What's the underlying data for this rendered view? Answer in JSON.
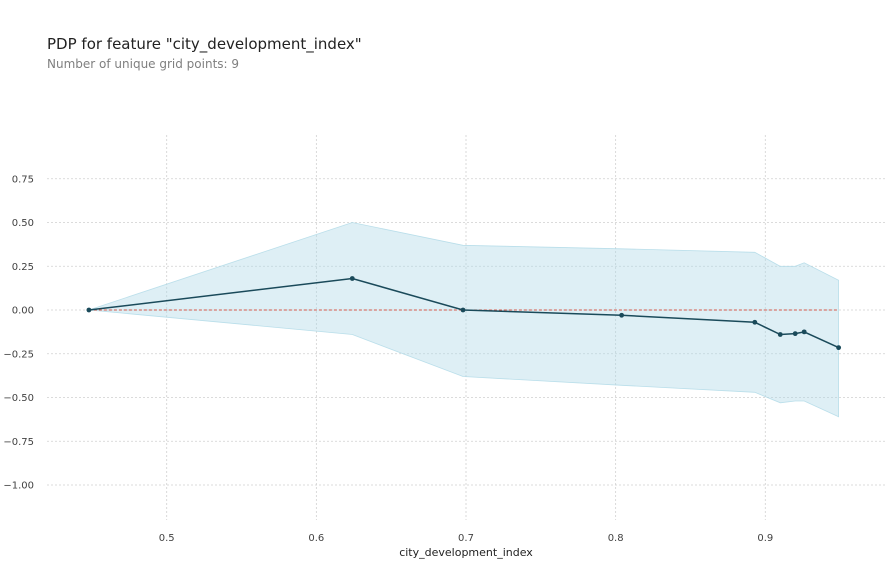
{
  "header": {
    "title": "PDP for feature \"city_development_index\"",
    "subtitle": "Number of unique grid points: 9"
  },
  "colors": {
    "line": "#1a4a5a",
    "band": "#add8e6",
    "baseline": "#d65a4a",
    "grid": "#d0d0d0"
  },
  "chart_data": {
    "type": "line",
    "title": "PDP for feature \"city_development_index\"",
    "subtitle": "Number of unique grid points: 9",
    "xlabel": "city_development_index",
    "ylabel": "",
    "xlim": [
      0.42,
      0.98
    ],
    "ylim": [
      -1.2,
      1.0
    ],
    "grid": true,
    "x_ticks": [
      0.5,
      0.6,
      0.7,
      0.8,
      0.9
    ],
    "x_tick_labels": [
      "0.5",
      "0.6",
      "0.7",
      "0.8",
      "0.9"
    ],
    "y_ticks": [
      0.75,
      0.5,
      0.25,
      0.0,
      -0.25,
      -0.5,
      -0.75,
      -1.0
    ],
    "y_tick_labels": [
      "0.75",
      "0.50",
      "0.25",
      "0.00",
      "−0.25",
      "−0.50",
      "−0.75",
      "−1.00"
    ],
    "x": [
      0.448,
      0.624,
      0.698,
      0.804,
      0.893,
      0.91,
      0.92,
      0.926,
      0.949
    ],
    "series": [
      {
        "values": [
          0.0,
          0.18,
          0.0,
          -0.03,
          -0.07,
          -0.14,
          -0.135,
          -0.125,
          -0.215
        ],
        "upper": [
          0.0,
          0.5,
          0.37,
          0.35,
          0.33,
          0.25,
          0.25,
          0.27,
          0.17
        ],
        "lower": [
          0.0,
          -0.14,
          -0.38,
          -0.43,
          -0.47,
          -0.53,
          -0.52,
          -0.52,
          -0.61
        ]
      }
    ],
    "baseline": 0.0
  }
}
